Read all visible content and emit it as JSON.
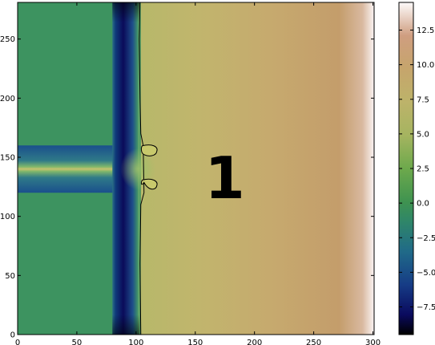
{
  "chart_data": {
    "type": "heatmap",
    "title": "",
    "xlabel": "",
    "ylabel": "",
    "xlim": [
      0,
      301
    ],
    "ylim": [
      0,
      281
    ],
    "x_ticks": [
      0,
      50,
      100,
      150,
      200,
      250,
      300
    ],
    "y_ticks": [
      0,
      50,
      100,
      150,
      200,
      250
    ],
    "colorbar": {
      "range": [
        -9.5,
        14.5
      ],
      "ticks": [
        -7.5,
        -5.0,
        -2.5,
        0.0,
        2.5,
        5.0,
        7.5,
        10.0,
        12.5
      ],
      "tick_labels": [
        "−7.5",
        "−5.0",
        "−2.5",
        "0.0",
        "2.5",
        "5.0",
        "7.5",
        "10.0",
        "12.5"
      ],
      "colormap": "gist_earth"
    },
    "regions": {
      "background_value": 0.0,
      "vertical_channel": {
        "x_range": [
          80,
          103
        ],
        "value_min": -9.5
      },
      "horizontal_channel": {
        "x_range": [
          0,
          80
        ],
        "y_range": [
          120,
          160
        ],
        "center_y": 140
      },
      "front_contour_x": 104,
      "field_right_of_front": {
        "x_range": [
          104,
          301
        ],
        "value_left": 6.0,
        "value_right": 14.5
      }
    },
    "annotation": {
      "text": "1",
      "x": 175,
      "y": 133
    },
    "grid": false
  }
}
